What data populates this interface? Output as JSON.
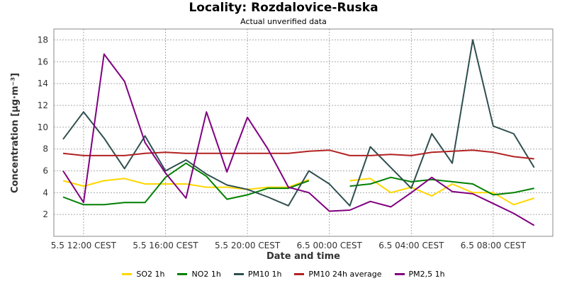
{
  "chart_data": {
    "type": "line",
    "title": "Locality: Rozdalovice-Ruska",
    "subtitle": "Actual unverified data",
    "xlabel": "Date and time",
    "ylabel": "Concentration [µg·m⁻³]",
    "ylim": [
      0,
      19
    ],
    "yticks": [
      2,
      4,
      6,
      8,
      10,
      12,
      14,
      16,
      18
    ],
    "grid": true,
    "legend_position": "bottom",
    "x_ticks": [
      "5.5 12:00 CEST",
      "5.5 16:00 CEST",
      "5.5 20:00 CEST",
      "6.5 00:00 CEST",
      "6.5 04:00 CEST",
      "6.5 08:00 CEST"
    ],
    "x": [
      "5.5 11:00",
      "5.5 12:00",
      "5.5 13:00",
      "5.5 14:00",
      "5.5 15:00",
      "5.5 16:00",
      "5.5 17:00",
      "5.5 18:00",
      "5.5 19:00",
      "5.5 20:00",
      "5.5 21:00",
      "5.5 22:00",
      "5.5 23:00",
      "6.5 00:00",
      "6.5 01:00",
      "6.5 02:00",
      "6.5 03:00",
      "6.5 04:00",
      "6.5 05:00",
      "6.5 06:00",
      "6.5 07:00",
      "6.5 08:00",
      "6.5 09:00",
      "6.5 10:00"
    ],
    "series": [
      {
        "name": "SO2 1h",
        "color": "#ffd700",
        "values": [
          5.1,
          4.6,
          5.1,
          5.3,
          4.8,
          4.8,
          4.8,
          4.5,
          4.5,
          4.3,
          4.5,
          4.5,
          5.2,
          null,
          5.1,
          5.3,
          4.0,
          4.5,
          3.7,
          4.8,
          4.0,
          4.0,
          2.9,
          3.5
        ]
      },
      {
        "name": "NO2 1h",
        "color": "#008000",
        "values": [
          3.6,
          2.9,
          2.9,
          3.1,
          3.1,
          5.4,
          6.7,
          5.5,
          3.4,
          3.8,
          4.4,
          4.4,
          5.1,
          null,
          4.6,
          4.8,
          5.4,
          5.0,
          5.2,
          5.0,
          4.8,
          3.8,
          4.0,
          4.4
        ]
      },
      {
        "name": "PM10 1h",
        "color": "#2f4f4f",
        "values": [
          8.9,
          11.4,
          9.0,
          6.2,
          9.2,
          6.0,
          7.0,
          5.7,
          4.7,
          4.3,
          3.6,
          2.8,
          6.0,
          4.8,
          2.8,
          8.2,
          6.3,
          4.4,
          9.4,
          6.7,
          18.0,
          10.1,
          9.4,
          6.3
        ]
      },
      {
        "name": "PM10 24h average",
        "color": "#b22222",
        "values": [
          7.6,
          7.4,
          7.4,
          7.4,
          7.6,
          7.7,
          7.6,
          7.6,
          7.6,
          7.6,
          7.6,
          7.6,
          7.8,
          7.9,
          7.4,
          7.4,
          7.5,
          7.4,
          7.7,
          7.8,
          7.9,
          7.7,
          7.3,
          7.1
        ]
      },
      {
        "name": "PM2,5 1h",
        "color": "#800080",
        "values": [
          6.0,
          3.1,
          16.7,
          14.2,
          8.6,
          5.8,
          3.5,
          11.4,
          5.9,
          10.9,
          8.0,
          4.5,
          4.0,
          2.3,
          2.4,
          3.2,
          2.7,
          4.0,
          5.4,
          4.1,
          3.9,
          3.0,
          2.1,
          1.0
        ]
      }
    ]
  }
}
